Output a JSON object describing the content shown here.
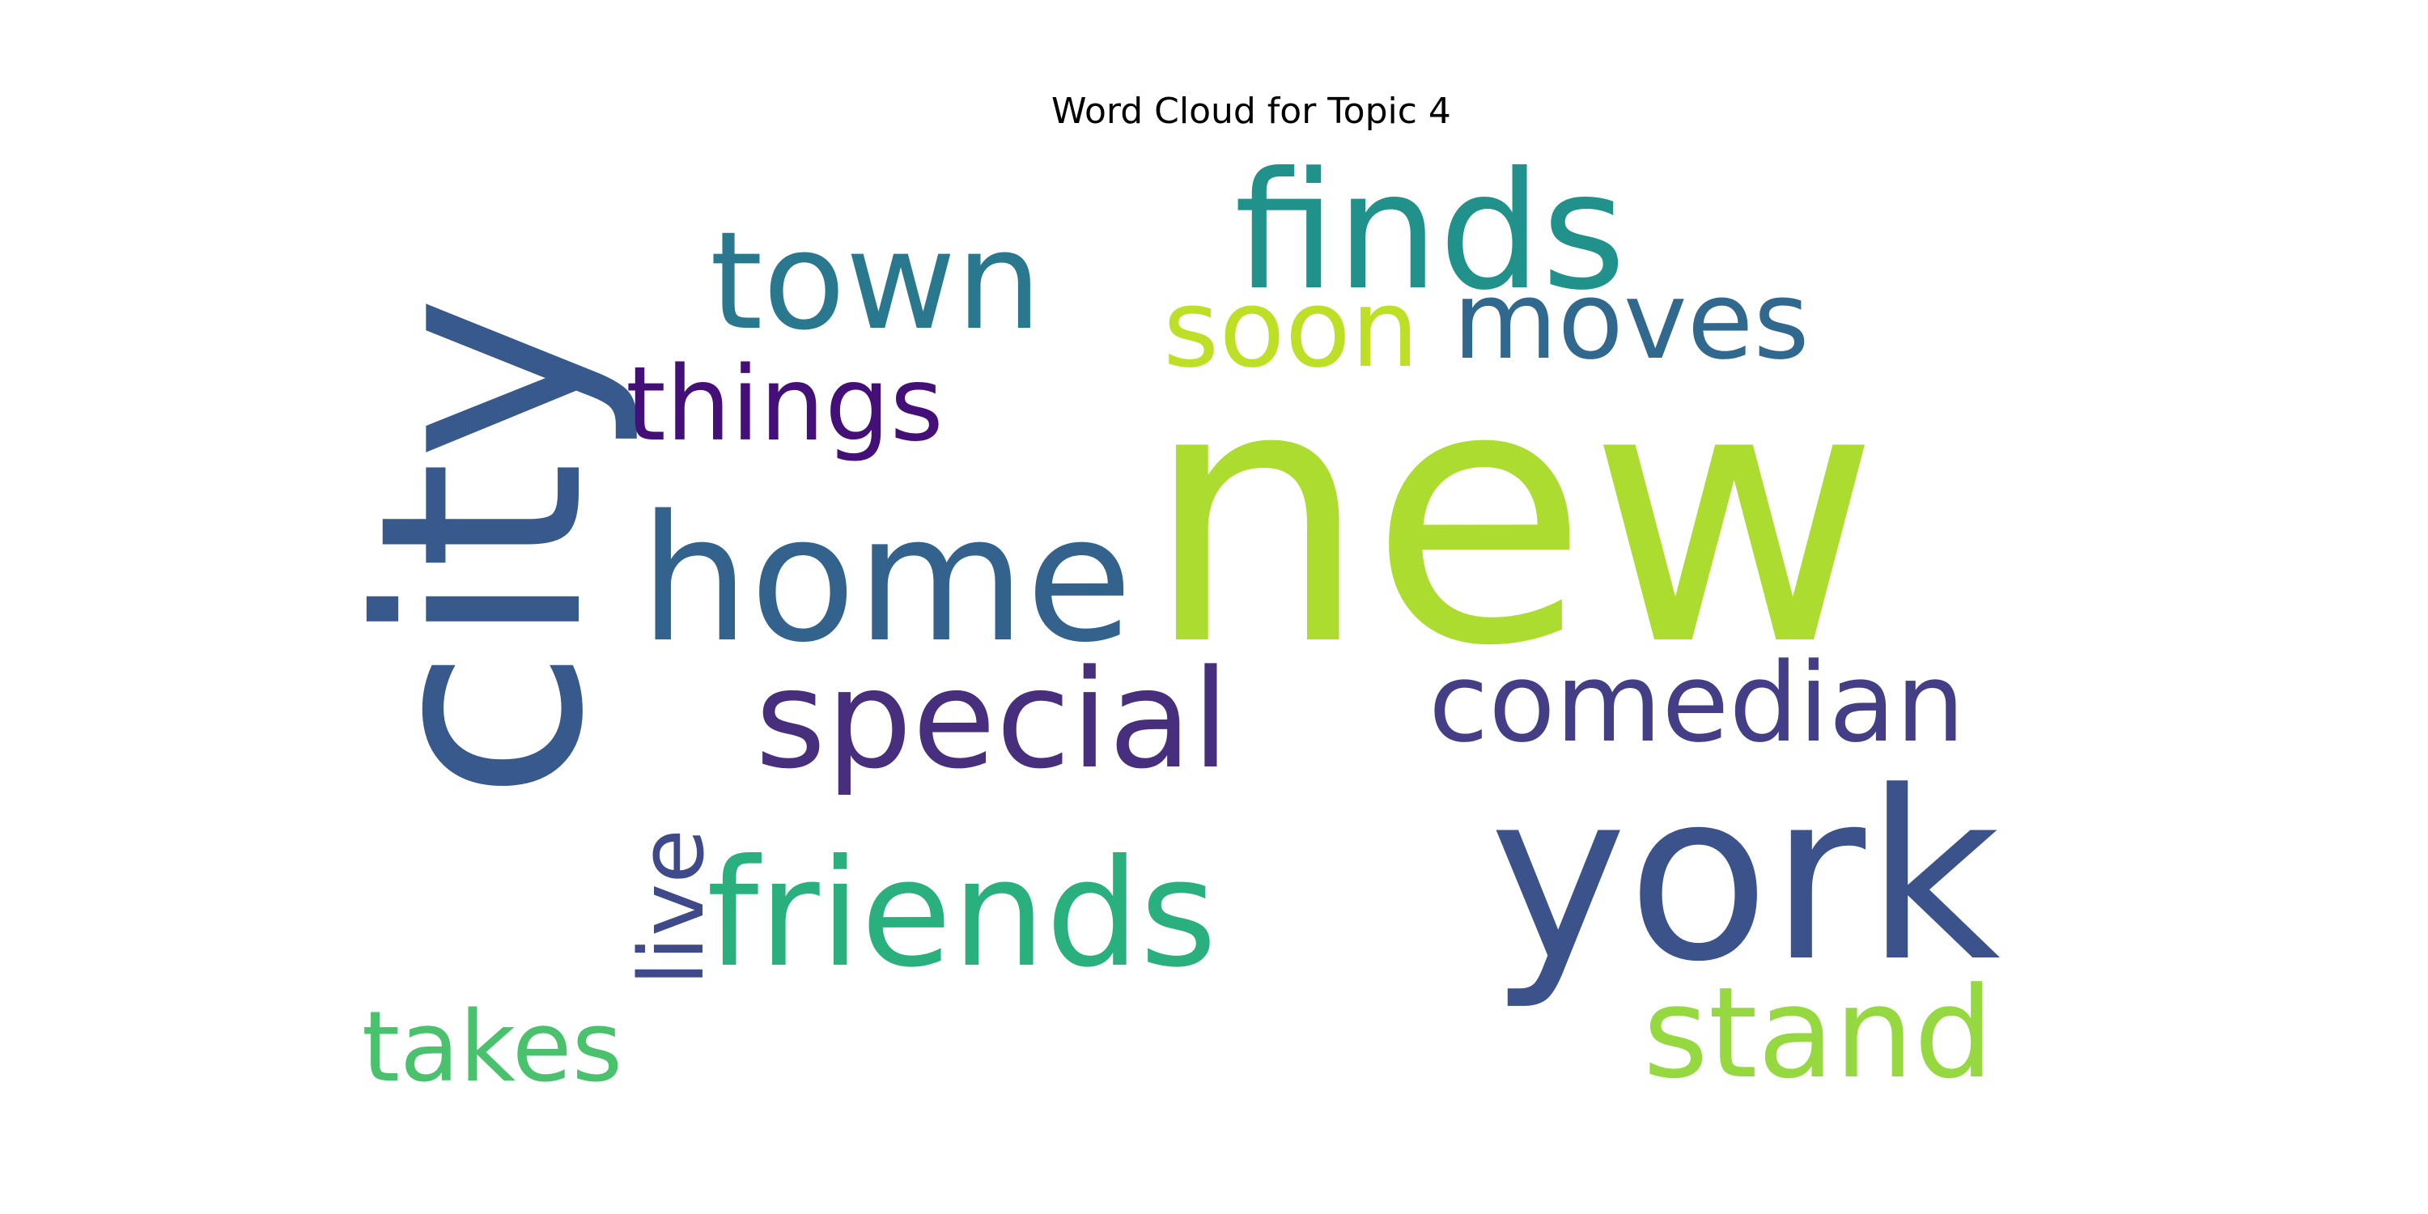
{
  "chart_data": {
    "type": "wordcloud",
    "title": "Word Cloud for Topic 4",
    "words": [
      {
        "text": "new",
        "weight": 1.0,
        "color": "#addc30",
        "orientation": "horizontal"
      },
      {
        "text": "city",
        "weight": 0.82,
        "color": "#38598c",
        "orientation": "vertical"
      },
      {
        "text": "york",
        "weight": 0.8,
        "color": "#3b528b",
        "orientation": "horizontal"
      },
      {
        "text": "home",
        "weight": 0.52,
        "color": "#33638d",
        "orientation": "horizontal"
      },
      {
        "text": "finds",
        "weight": 0.47,
        "color": "#21918c",
        "orientation": "horizontal"
      },
      {
        "text": "friends",
        "weight": 0.42,
        "color": "#2ab07f",
        "orientation": "horizontal"
      },
      {
        "text": "town",
        "weight": 0.38,
        "color": "#2a788e",
        "orientation": "horizontal"
      },
      {
        "text": "special",
        "weight": 0.38,
        "color": "#472f7d",
        "orientation": "horizontal"
      },
      {
        "text": "stand",
        "weight": 0.35,
        "color": "#95d840",
        "orientation": "horizontal"
      },
      {
        "text": "comedian",
        "weight": 0.31,
        "color": "#433e85",
        "orientation": "horizontal"
      },
      {
        "text": "moves",
        "weight": 0.31,
        "color": "#31688e",
        "orientation": "horizontal"
      },
      {
        "text": "soon",
        "weight": 0.31,
        "color": "#bddf26",
        "orientation": "horizontal"
      },
      {
        "text": "things",
        "weight": 0.29,
        "color": "#440f76",
        "orientation": "horizontal"
      },
      {
        "text": "takes",
        "weight": 0.27,
        "color": "#4ac16d",
        "orientation": "horizontal"
      },
      {
        "text": "live",
        "weight": 0.25,
        "color": "#3e4a89",
        "orientation": "vertical"
      }
    ]
  }
}
